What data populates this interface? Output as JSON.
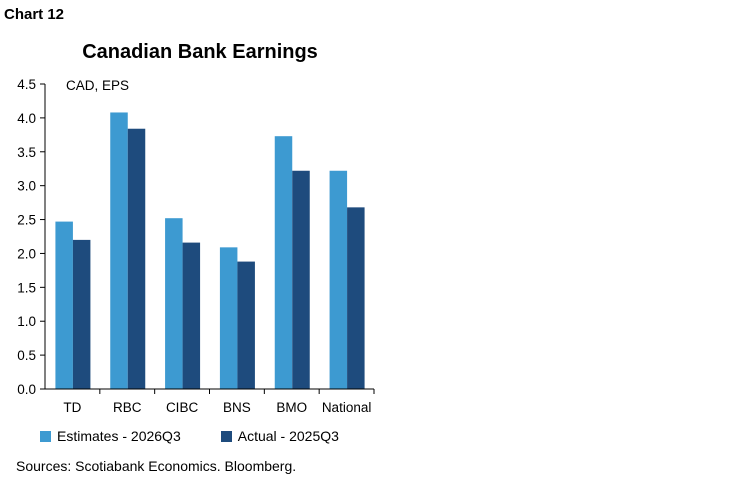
{
  "chart_label": "Chart 12",
  "source": "Sources: Scotiabank Economics. Bloomberg.",
  "colors": {
    "estimates": "#3d9ad1",
    "actual": "#1e4b7d"
  },
  "chart_data": {
    "type": "bar",
    "title": "Canadian Bank Earnings",
    "unit_label": "CAD, EPS",
    "categories": [
      "TD",
      "RBC",
      "CIBC",
      "BNS",
      "BMO",
      "National"
    ],
    "series": [
      {
        "name": "Estimates - 2026Q3",
        "values": [
          2.47,
          4.08,
          2.52,
          2.09,
          3.73,
          3.22
        ]
      },
      {
        "name": "Actual - 2025Q3",
        "values": [
          2.2,
          3.84,
          2.16,
          1.88,
          3.22,
          2.68
        ]
      }
    ],
    "ylim": [
      0,
      4.5
    ],
    "yticks": [
      "0.0",
      "0.5",
      "1.0",
      "1.5",
      "2.0",
      "2.5",
      "3.0",
      "3.5",
      "4.0",
      "4.5"
    ],
    "grid": false,
    "legend_position": "bottom"
  }
}
